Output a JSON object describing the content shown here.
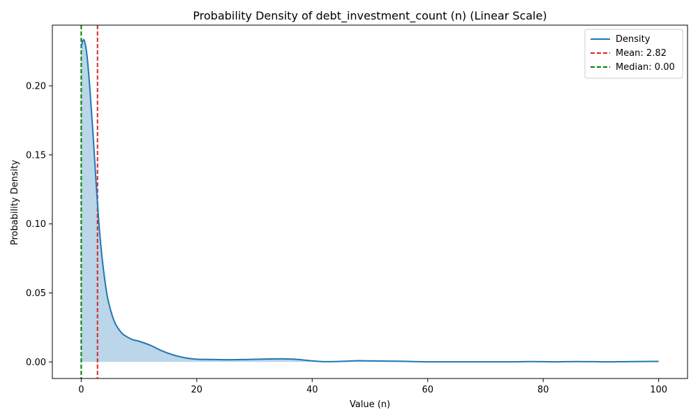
{
  "chart_data": {
    "type": "line",
    "title": "Probability Density of debt_investment_count (n) (Linear Scale)",
    "xlabel": "Value (n)",
    "ylabel": "Probability Density",
    "xlim": [
      -5,
      105
    ],
    "ylim": [
      -0.012,
      0.244
    ],
    "xticks": [
      0,
      20,
      40,
      60,
      80,
      100
    ],
    "xtick_labels": [
      "0",
      "20",
      "40",
      "60",
      "80",
      "100"
    ],
    "yticks": [
      0.0,
      0.05,
      0.1,
      0.15,
      0.2
    ],
    "ytick_labels": [
      "0.00",
      "0.05",
      "0.10",
      "0.15",
      "0.20"
    ],
    "grid": false,
    "legend_position": "top-right",
    "colors": {
      "density": "#1f77b4",
      "fill": "#1f77b4",
      "mean": "#d62728",
      "median": "#008000"
    },
    "series": [
      {
        "name": "Density",
        "x": [
          0,
          0.3,
          0.6,
          1,
          1.5,
          2,
          2.5,
          3,
          3.5,
          4,
          4.5,
          5,
          5.5,
          6,
          7,
          8,
          9,
          10,
          12,
          14,
          16,
          18,
          20,
          22,
          25,
          28,
          30,
          32,
          35,
          37,
          40,
          42,
          44,
          46,
          48,
          50,
          55,
          60,
          65,
          70,
          75,
          78,
          82,
          86,
          90,
          92,
          96,
          100
        ],
        "y": [
          0.228,
          0.233,
          0.232,
          0.222,
          0.198,
          0.168,
          0.135,
          0.104,
          0.08,
          0.062,
          0.048,
          0.039,
          0.032,
          0.027,
          0.021,
          0.018,
          0.016,
          0.015,
          0.012,
          0.008,
          0.005,
          0.003,
          0.002,
          0.0018,
          0.0016,
          0.0017,
          0.0019,
          0.0021,
          0.0022,
          0.002,
          0.0008,
          0.0002,
          0.0003,
          0.0006,
          0.0009,
          0.0008,
          0.0005,
          0.0001,
          0.0001,
          0.0001,
          0.0001,
          0.0003,
          0.0001,
          0.0003,
          0.0001,
          0.0001,
          0.0003,
          0.0004
        ]
      }
    ],
    "reference_lines": [
      {
        "name": "Mean: 2.82",
        "x": 2.82,
        "style": "dashed",
        "color": "#d62728"
      },
      {
        "name": "Median: 0.00",
        "x": 0.0,
        "style": "dashed",
        "color": "#008000"
      }
    ],
    "legend": [
      "Density",
      "Mean: 2.82",
      "Median: 0.00"
    ]
  }
}
